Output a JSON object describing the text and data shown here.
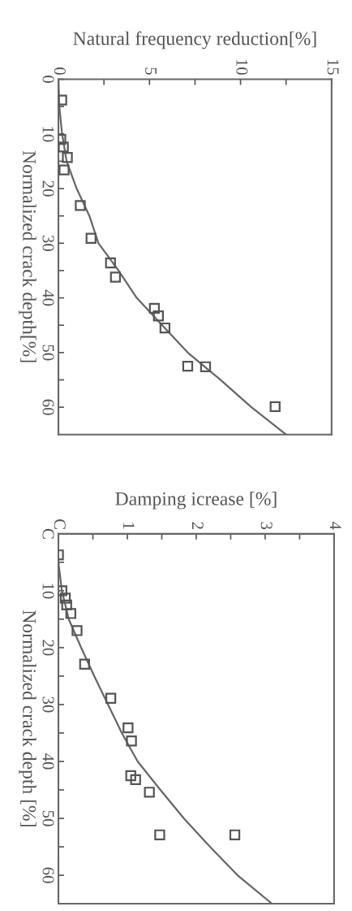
{
  "chart_data": [
    {
      "type": "scatter",
      "xlabel": "Natural frequency reduction[%]",
      "ylabel": "Normalized crack depth[%]",
      "xlim": [
        0,
        15
      ],
      "xticks": [
        0,
        {
          "value": 2.5,
          "label": null
        },
        5,
        {
          "value": 7.5,
          "label": null
        },
        10,
        {
          "value": 12.5,
          "label": null
        },
        15
      ],
      "ylim": [
        65,
        0
      ],
      "yticks": [
        0,
        {
          "value": 5,
          "label": null
        },
        10,
        {
          "value": 15,
          "label": null
        },
        20,
        {
          "value": 25,
          "label": null
        },
        30,
        {
          "value": 35,
          "label": null
        },
        40,
        {
          "value": 45,
          "label": null
        },
        50,
        {
          "value": 55,
          "label": null
        },
        60
      ],
      "grid": false,
      "legend": false,
      "series": [
        {
          "color": "#555555",
          "marker": "square",
          "x": [
            0.18,
            0.13,
            0.27,
            0.49,
            0.31,
            1.2,
            1.79,
            2.86,
            3.13,
            5.27,
            5.49,
            5.85,
            7.1,
            8.08,
            11.9
          ],
          "values": [
            3.8,
            11.0,
            12.4,
            14.3,
            16.6,
            23.1,
            29.1,
            33.6,
            36.2,
            41.9,
            43.3,
            45.5,
            52.5,
            52.6,
            59.9
          ]
        },
        {
          "type": "line",
          "color": "#666666",
          "marker": "none",
          "line_style": "solid",
          "x": [
            0,
            0.05,
            0.2,
            0.45,
            1.0,
            1.7,
            2.2,
            3.3,
            4.3,
            5.7,
            7.1,
            8.9,
            10.6,
            12.5
          ],
          "values": [
            0,
            5,
            10,
            15,
            20,
            25,
            30,
            35,
            40,
            45,
            50,
            55,
            60,
            65
          ]
        }
      ]
    },
    {
      "type": "scatter",
      "xlabel": "Damping icrease [%]",
      "ylabel": "Normalized crack depth [%]",
      "xlim": [
        0,
        4
      ],
      "xticks": [
        {
          "value": 0,
          "label": "C"
        },
        {
          "value": 0.5,
          "label": null
        },
        1,
        {
          "value": 1.5,
          "label": null
        },
        2,
        {
          "value": 2.5,
          "label": null
        },
        3,
        {
          "value": 3.5,
          "label": null
        },
        4
      ],
      "ylim": [
        65,
        0
      ],
      "yticks": [
        {
          "value": 0,
          "label": "C"
        },
        {
          "value": 5,
          "label": null
        },
        10,
        {
          "value": 15,
          "label": null
        },
        20,
        {
          "value": 25,
          "label": null
        },
        30,
        {
          "value": 35,
          "label": null
        },
        40,
        {
          "value": 45,
          "label": null
        },
        50,
        {
          "value": 55,
          "label": null
        },
        60
      ],
      "grid": false,
      "legend": false,
      "series": [
        {
          "color": "#555555",
          "marker": "square",
          "x": [
            0.0,
            0.05,
            0.1,
            0.12,
            0.18,
            0.27,
            0.38,
            0.76,
            1.01,
            1.06,
            1.05,
            1.12,
            1.32,
            1.47,
            2.56
          ],
          "values": [
            3.7,
            10.0,
            11.3,
            12.5,
            14.0,
            17.0,
            22.9,
            28.9,
            34.1,
            36.4,
            42.5,
            43.2,
            45.4,
            52.9,
            52.9
          ]
        },
        {
          "type": "line",
          "color": "#666666",
          "marker": "none",
          "line_style": "solid",
          "x": [
            0,
            0.05,
            0.15,
            0.33,
            0.52,
            0.72,
            0.92,
            1.15,
            1.48,
            1.82,
            2.2,
            2.6,
            3.1
          ],
          "values": [
            5,
            10,
            15,
            20,
            25,
            30,
            35,
            40,
            45,
            50,
            55,
            60,
            65
          ]
        }
      ]
    }
  ]
}
